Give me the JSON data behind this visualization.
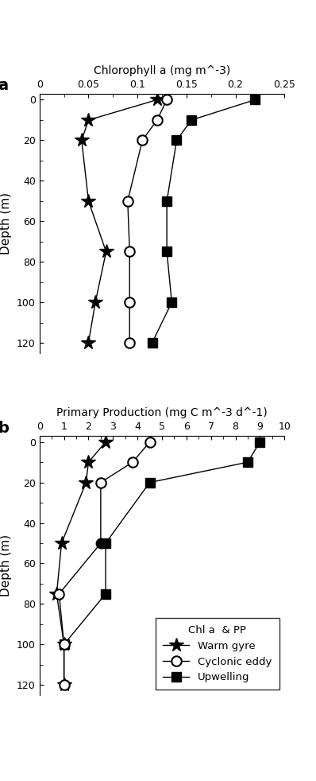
{
  "panel_a": {
    "title": "Chlorophyll a (mg m^-3)",
    "xlabel_ticks": [
      0,
      0.05,
      0.1,
      0.15,
      0.2,
      0.25
    ],
    "xlim": [
      0,
      0.25
    ],
    "depth_levels_wg": [
      0,
      10,
      20,
      50,
      75,
      100,
      120
    ],
    "depth_levels_ce": [
      0,
      10,
      20,
      50,
      75,
      100,
      120
    ],
    "depth_levels_up": [
      0,
      10,
      20,
      50,
      75,
      100,
      120
    ],
    "warm_gyre": [
      0.12,
      0.05,
      0.043,
      0.05,
      0.068,
      0.057,
      0.05
    ],
    "cyclonic_eddy": [
      0.13,
      0.12,
      0.105,
      0.09,
      0.092,
      0.092,
      0.092
    ],
    "upwelling": [
      0.22,
      0.155,
      0.14,
      0.13,
      0.13,
      0.135,
      0.115
    ]
  },
  "panel_b": {
    "title": "Primary Production (mg C m^-3 d^-1)",
    "xlabel_ticks": [
      0,
      1,
      2,
      3,
      4,
      5,
      6,
      7,
      8,
      9,
      10
    ],
    "xlim": [
      0,
      10
    ],
    "depth_levels_wg": [
      0,
      10,
      20,
      50,
      75,
      100,
      120
    ],
    "depth_levels_ce": [
      0,
      10,
      20,
      50,
      75,
      100,
      120
    ],
    "depth_levels_up": [
      0,
      10,
      20,
      50,
      75,
      100
    ],
    "warm_gyre": [
      2.7,
      2.0,
      1.9,
      0.9,
      0.7,
      1.0,
      1.0
    ],
    "cyclonic_eddy": [
      4.5,
      3.8,
      2.5,
      2.5,
      0.8,
      1.0,
      1.0
    ],
    "upwelling": [
      9.0,
      8.5,
      4.5,
      2.7,
      2.7,
      1.0
    ]
  },
  "ylim": [
    125,
    -3
  ],
  "yticks": [
    0,
    20,
    40,
    60,
    80,
    100,
    120
  ],
  "yminor_ticks": [
    0,
    10,
    20,
    30,
    40,
    50,
    60,
    70,
    80,
    90,
    100,
    110,
    120
  ],
  "ylabel": "Depth (m)",
  "legend_title": "Chl a  & PP",
  "bg_color": "#ffffff"
}
